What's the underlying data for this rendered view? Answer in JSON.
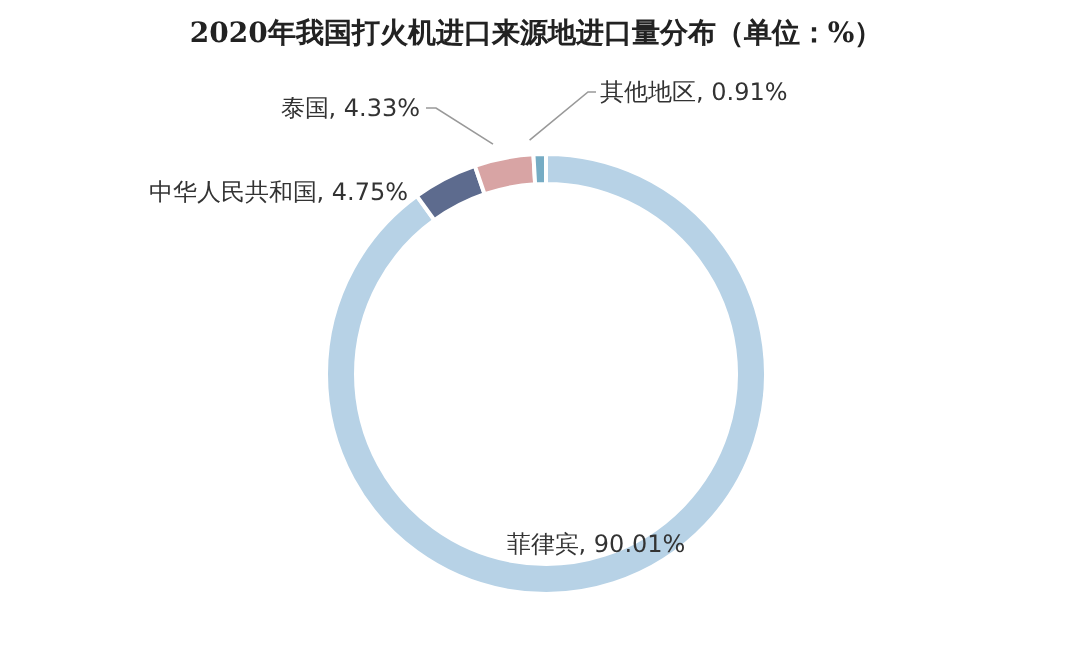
{
  "chart_data": {
    "type": "donut",
    "title": "2020年我国打火机进口来源地进口量分布（单位：%）",
    "categories": [
      "菲律宾",
      "中华人民共和国",
      "泰国",
      "其他地区"
    ],
    "values": [
      90.01,
      4.75,
      4.33,
      0.91
    ],
    "value_labels": [
      "90.01%",
      "4.75%",
      "4.33%",
      "0.91%"
    ],
    "colors": [
      "#b7d2e6",
      "#5d6b8e",
      "#d8a4a4",
      "#76acc4"
    ]
  }
}
